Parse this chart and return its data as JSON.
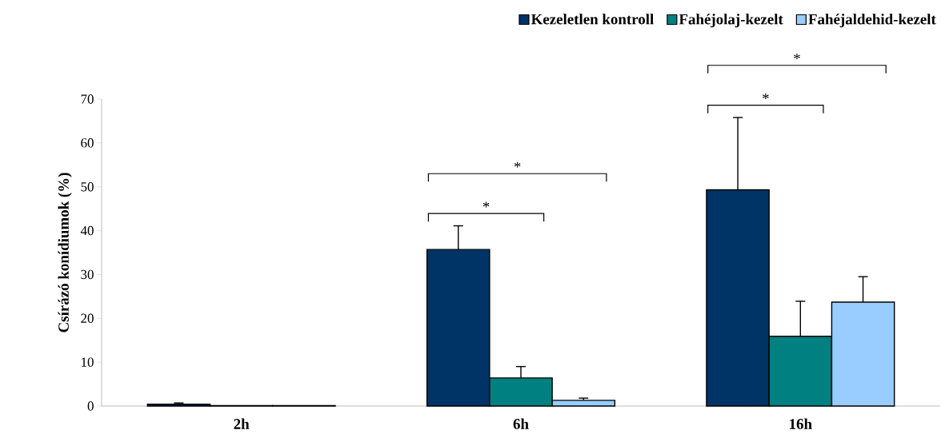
{
  "chart_data": {
    "type": "bar",
    "ylabel": "Csírázó konídiumok (%)",
    "categories": [
      "2h",
      "6h",
      "16h"
    ],
    "series": [
      {
        "name": "Kezeletlen kontroll",
        "color": "#003366",
        "values": [
          0.4,
          35.7,
          49.3
        ],
        "errors": [
          0.3,
          5.4,
          16.5
        ]
      },
      {
        "name": "Fahéjolaj-kezelt",
        "color": "#008080",
        "values": [
          0.1,
          6.4,
          15.9
        ],
        "errors": [
          null,
          2.6,
          8.0
        ]
      },
      {
        "name": "Fahéjaldehid-kezelt",
        "color": "#99ccff",
        "values": [
          0.1,
          1.3,
          23.7
        ],
        "errors": [
          null,
          0.5,
          5.8
        ]
      }
    ],
    "ylim": [
      0,
      70
    ],
    "yticks": [
      0,
      10,
      20,
      30,
      40,
      50,
      60,
      70
    ],
    "legend": "top right",
    "annotations": [
      "*",
      "*",
      "*",
      "*"
    ]
  }
}
